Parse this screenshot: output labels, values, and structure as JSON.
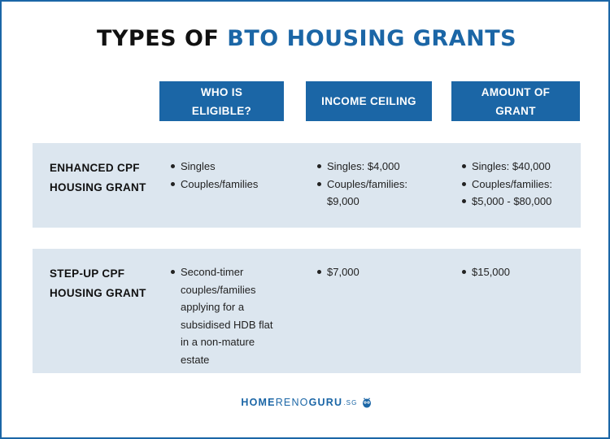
{
  "title": {
    "part1": "TYPES OF ",
    "part2": "BTO HOUSING GRANTS"
  },
  "headers": [
    "WHO IS ELIGIBLE?",
    "INCOME CEILING",
    "AMOUNT OF GRANT"
  ],
  "rows": [
    {
      "label": "ENHANCED CPF HOUSING GRANT",
      "eligible": [
        "Singles",
        "Couples/families"
      ],
      "income": [
        "Singles: $4,000",
        "Couples/families: $9,000"
      ],
      "amount": [
        "Singles: $40,000",
        "Couples/families:",
        "$5,000 - $80,000"
      ]
    },
    {
      "label": "STEP-UP CPF HOUSING GRANT",
      "eligible": [
        "Second-timer couples/families applying for a subsidised HDB flat in a non-mature estate"
      ],
      "income": [
        "$7,000"
      ],
      "amount": [
        "$15,000"
      ]
    }
  ],
  "logo": {
    "home": "HOME",
    "reno": "RENO",
    "guru": "GURU",
    "sg": ".SG",
    "icon": "owl-icon"
  },
  "colors": {
    "accent": "#1b66a6",
    "row_bg": "#dce6ef"
  }
}
